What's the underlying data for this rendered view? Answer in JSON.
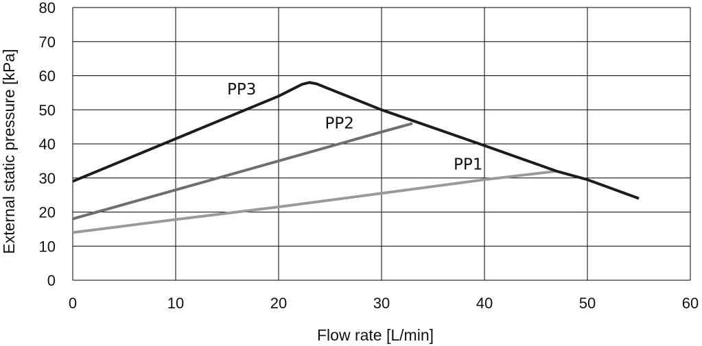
{
  "chart_data": {
    "type": "line",
    "title": "",
    "xlabel": "Flow rate [L/min]",
    "ylabel": "External static pressure [kPa]",
    "xlim": [
      0,
      60
    ],
    "ylim": [
      0,
      80
    ],
    "x_ticks": [
      0,
      10,
      20,
      30,
      40,
      50,
      60
    ],
    "y_ticks": [
      0,
      10,
      20,
      30,
      40,
      50,
      60,
      70,
      80
    ],
    "grid": true,
    "legend": "inline labels",
    "series": [
      {
        "name": "PP1",
        "color": "#9a9a9a",
        "x": [
          0,
          10,
          20,
          30,
          40,
          47
        ],
        "y": [
          14,
          17.8,
          21.5,
          25.5,
          29.5,
          32
        ],
        "label_at": [
          37,
          32.5
        ]
      },
      {
        "name": "PP2",
        "color": "#6e6e6e",
        "x": [
          0,
          10,
          20,
          30,
          33
        ],
        "y": [
          18,
          26.5,
          35,
          43.5,
          46
        ],
        "label_at": [
          24.5,
          44.5
        ]
      },
      {
        "name": "PP3",
        "color": "#1c1c1c",
        "x": [
          0,
          10,
          20,
          22.3,
          23,
          23.7,
          30,
          40,
          47,
          50,
          55
        ],
        "y": [
          29,
          41.5,
          54,
          57.5,
          58,
          57.6,
          50,
          39.5,
          32,
          29.5,
          24
        ],
        "label_at": [
          15,
          54.5
        ]
      }
    ]
  }
}
